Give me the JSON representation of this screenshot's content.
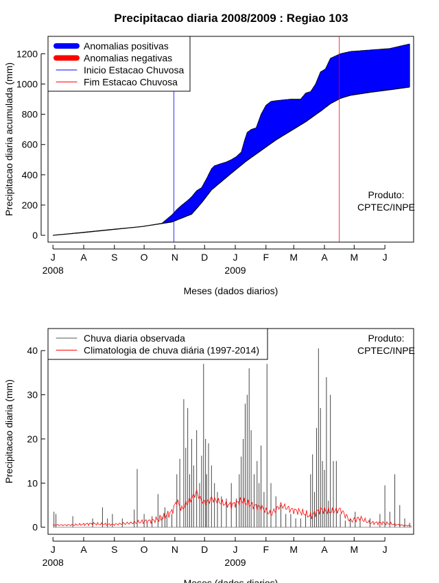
{
  "page": {
    "title": "Precipitacao diaria 2008/2009 : Regiao 103"
  },
  "chart_data": [
    {
      "type": "area",
      "ylabel": "Precipitacao diaria acumulada (mm)",
      "xlabel": "Meses (dados diarios)",
      "month_ticks": [
        "J",
        "A",
        "S",
        "O",
        "N",
        "D",
        "J",
        "F",
        "M",
        "A",
        "M",
        "J"
      ],
      "year_labels": [
        {
          "label": "2008",
          "month_index": 0
        },
        {
          "label": "2009",
          "month_index": 6
        }
      ],
      "yticks": [
        0,
        200,
        400,
        600,
        800,
        1000,
        1200
      ],
      "ylim": [
        -45,
        1315
      ],
      "xlim_days": [
        -5,
        364
      ],
      "legend": {
        "position": "top-left",
        "entries": [
          {
            "label": "Anomalias positivas",
            "color": "#0000ff",
            "style": "thick"
          },
          {
            "label": "Anomalias negativas",
            "color": "#ff0000",
            "style": "thick"
          },
          {
            "label": "Inicio Estacao Chuvosa",
            "color": "#0000ff",
            "style": "thin"
          },
          {
            "label": "Fim Estacao Chuvosa",
            "color": "#ff0000",
            "style": "thin"
          }
        ]
      },
      "annotation": [
        "Produto:",
        "CPTEC/INPE"
      ],
      "rainy_season": {
        "start_day": 122,
        "end_day": 289
      },
      "cumulative_climatology": {
        "days": [
          0,
          30,
          60,
          90,
          120,
          140,
          150,
          160,
          170,
          180,
          195,
          210,
          225,
          240,
          255,
          270,
          280,
          290,
          300,
          320,
          340,
          360
        ],
        "values": [
          0,
          18,
          38,
          58,
          88,
          140,
          215,
          300,
          355,
          410,
          490,
          560,
          630,
          690,
          750,
          820,
          870,
          905,
          925,
          945,
          962,
          980
        ]
      },
      "cumulative_observed": {
        "days": [
          0,
          30,
          60,
          90,
          110,
          120,
          125,
          130,
          135,
          140,
          145,
          150,
          155,
          160,
          163,
          170,
          175,
          180,
          185,
          190,
          193,
          196,
          200,
          205,
          210,
          215,
          220,
          225,
          232,
          240,
          250,
          255,
          260,
          265,
          270,
          275,
          280,
          290,
          300,
          320,
          340,
          360
        ],
        "values": [
          0,
          20,
          40,
          58,
          80,
          135,
          170,
          200,
          225,
          255,
          295,
          315,
          375,
          440,
          460,
          475,
          485,
          500,
          520,
          550,
          620,
          680,
          700,
          710,
          800,
          860,
          885,
          890,
          895,
          900,
          900,
          940,
          950,
          1000,
          1080,
          1100,
          1170,
          1200,
          1215,
          1225,
          1235,
          1265
        ]
      }
    },
    {
      "type": "bar",
      "ylabel": "Precipitacao diaria (mm)",
      "xlabel": "Meses (dados diarios)",
      "month_ticks": [
        "J",
        "A",
        "S",
        "O",
        "N",
        "D",
        "J",
        "F",
        "M",
        "A",
        "M",
        "J"
      ],
      "year_labels": [
        {
          "label": "2008",
          "month_index": 0
        },
        {
          "label": "2009",
          "month_index": 6
        }
      ],
      "yticks": [
        0,
        10,
        20,
        30,
        40
      ],
      "ylim": [
        -1.6,
        45
      ],
      "xlim_days": [
        -5,
        364
      ],
      "legend": {
        "position": "top-left",
        "entries": [
          {
            "label": "Chuva diaria observada",
            "color": "#555555"
          },
          {
            "label": "Climatologia de chuva diária (1997-2014)",
            "color": "#ff0000"
          }
        ]
      },
      "annotation": [
        "Produto:",
        "CPTEC/INPE"
      ],
      "observed_daily": {
        "days": [
          1,
          3,
          20,
          40,
          50,
          55,
          60,
          70,
          82,
          85,
          92,
          95,
          100,
          106,
          110,
          113,
          115,
          120,
          125,
          128,
          132,
          134,
          136,
          138,
          140,
          142,
          145,
          148,
          150,
          152,
          154,
          155,
          157,
          160,
          163,
          166,
          170,
          175,
          180,
          185,
          188,
          190,
          192,
          194,
          196,
          198,
          200,
          203,
          206,
          208,
          210,
          213,
          216,
          220,
          225,
          230,
          235,
          240,
          245,
          250,
          255,
          260,
          262,
          264,
          266,
          268,
          270,
          272,
          274,
          276,
          278,
          280,
          283,
          286,
          290,
          295,
          300,
          305,
          310,
          320,
          330,
          335,
          340,
          345,
          350,
          355,
          360
        ],
        "values": [
          3.5,
          3,
          2.5,
          2,
          4.5,
          2,
          3,
          2,
          4,
          13.2,
          3,
          1,
          2.5,
          7.5,
          2.5,
          4.5,
          3,
          3,
          12,
          15.5,
          29,
          18,
          27,
          12,
          20,
          14,
          22,
          10,
          16.2,
          37,
          20,
          12,
          19,
          14,
          10,
          8,
          7,
          6.5,
          10,
          6.5,
          12,
          16,
          20,
          28,
          30,
          36,
          22,
          12,
          15,
          10,
          18.5,
          8,
          37,
          10,
          7,
          5,
          3,
          3,
          2,
          2,
          3,
          12,
          16.5,
          8,
          22.5,
          40.5,
          27,
          15,
          13,
          34,
          6,
          30,
          15,
          15,
          3,
          1.5,
          2,
          3.5,
          2,
          2,
          3,
          9.5,
          3.5,
          12,
          5,
          2,
          1
        ]
      },
      "climatology_daily": {
        "days": [
          0,
          20,
          40,
          60,
          80,
          100,
          110,
          120,
          125,
          130,
          135,
          140,
          145,
          150,
          155,
          160,
          170,
          180,
          190,
          200,
          210,
          220,
          230,
          240,
          250,
          260,
          270,
          280,
          290,
          300,
          310,
          320,
          330,
          340,
          350,
          362
        ],
        "values": [
          0.5,
          0.5,
          0.8,
          0.6,
          1,
          1.5,
          2,
          3.5,
          6,
          4,
          5.5,
          6.5,
          8,
          6,
          5.5,
          6.5,
          5.5,
          5,
          6,
          5,
          4.5,
          3,
          5,
          4,
          3.5,
          2.5,
          4,
          3.5,
          4,
          1.5,
          2,
          1,
          1,
          0.8,
          0.5,
          0.3
        ]
      }
    }
  ]
}
